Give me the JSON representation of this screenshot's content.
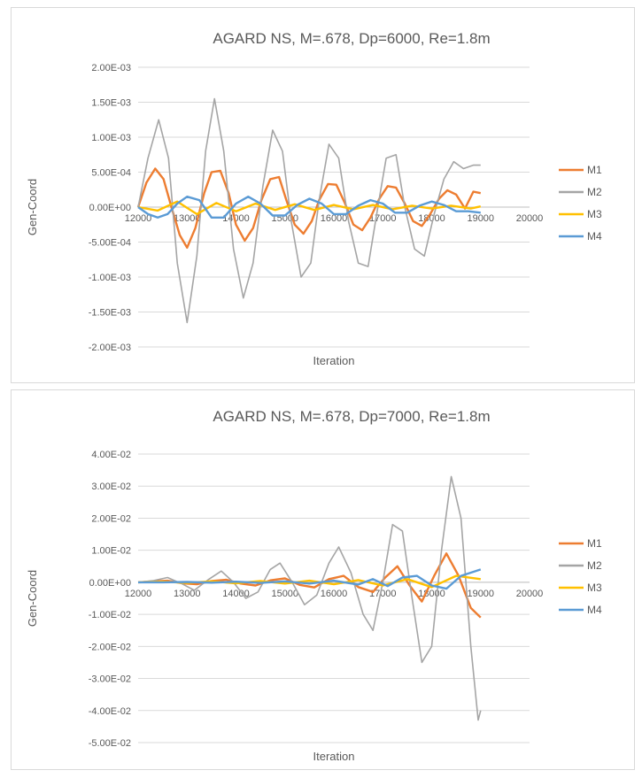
{
  "chart_data": [
    {
      "type": "line",
      "title": "AGARD NS, M=.678, Dp=6000, Re=1.8m",
      "xlabel": "Iteration",
      "ylabel": "Gen-Coord",
      "xlim": [
        12000,
        20000
      ],
      "ylim": [
        -0.002,
        0.002
      ],
      "x_ticks": [
        "12000",
        "13000",
        "14000",
        "15000",
        "16000",
        "17000",
        "18000",
        "19000",
        "20000"
      ],
      "y_ticks": [
        "2.00E-03",
        "1.50E-03",
        "1.00E-03",
        "5.00E-04",
        "0.00E+00",
        "-5.00E-04",
        "-1.00E-03",
        "-1.50E-03",
        "-2.00E-03"
      ],
      "grid": true,
      "legend": "right",
      "series": [
        {
          "name": "M1",
          "color": "#ED7D31",
          "x": [
            12000,
            12170,
            12350,
            12520,
            12680,
            12850,
            13000,
            13170,
            13350,
            13500,
            13680,
            13850,
            14000,
            14180,
            14350,
            14520,
            14700,
            14880,
            15030,
            15200,
            15380,
            15550,
            15700,
            15880,
            16050,
            16230,
            16400,
            16580,
            16750,
            16930,
            17100,
            17270,
            17450,
            17620,
            17800,
            17970,
            18150,
            18320,
            18500,
            18680,
            18850,
            19000
          ],
          "y": [
            0,
            0.00035,
            0.00055,
            0.0004,
            0,
            -0.0004,
            -0.00058,
            -0.0003,
            0.0002,
            0.0005,
            0.00052,
            0.0002,
            -0.00025,
            -0.00048,
            -0.0003,
            0.0001,
            0.0004,
            0.00043,
            0.0001,
            -0.00025,
            -0.00038,
            -0.0002,
            0.0001,
            0.00033,
            0.00032,
            5e-05,
            -0.00025,
            -0.00033,
            -0.00015,
            0.00012,
            0.0003,
            0.00028,
            5e-05,
            -0.0002,
            -0.00027,
            -0.0001,
            0.00012,
            0.00024,
            0.00018,
            -2e-05,
            0.00022,
            0.0002
          ]
        },
        {
          "name": "M2",
          "color": "#A5A5A5",
          "x": [
            12000,
            12200,
            12420,
            12620,
            12800,
            13000,
            13200,
            13380,
            13560,
            13750,
            13950,
            14150,
            14350,
            14550,
            14750,
            14950,
            15130,
            15330,
            15530,
            15700,
            15900,
            16100,
            16300,
            16500,
            16700,
            16900,
            17070,
            17270,
            17450,
            17650,
            17850,
            18050,
            18250,
            18450,
            18650,
            18850,
            19000
          ],
          "y": [
            0,
            0.0007,
            0.00125,
            0.0007,
            -0.0008,
            -0.00165,
            -0.0007,
            0.0008,
            0.00155,
            0.0008,
            -0.0006,
            -0.0013,
            -0.0008,
            0.0003,
            0.0011,
            0.0008,
            -0.0002,
            -0.001,
            -0.0008,
            0.0001,
            0.0009,
            0.0007,
            -0.0002,
            -0.0008,
            -0.00085,
            0,
            0.0007,
            0.00075,
            0,
            -0.0006,
            -0.0007,
            -0.0001,
            0.0004,
            0.00065,
            0.00055,
            0.0006,
            0.0006
          ]
        },
        {
          "name": "M3",
          "color": "#FFC000",
          "x": [
            12000,
            12400,
            12800,
            13200,
            13600,
            14000,
            14400,
            14800,
            15200,
            15600,
            16000,
            16400,
            16800,
            17200,
            17600,
            18000,
            18400,
            18800,
            19000
          ],
          "y": [
            0,
            -5e-05,
            8e-05,
            -0.0001,
            6e-05,
            -6e-05,
            5e-05,
            -4e-05,
            4e-05,
            -4e-05,
            3e-05,
            -3e-05,
            3e-05,
            -3e-05,
            2e-05,
            -2e-05,
            2e-05,
            -2e-05,
            1e-05
          ]
        },
        {
          "name": "M4",
          "color": "#5B9BD5",
          "x": [
            12000,
            12200,
            12400,
            12600,
            12800,
            13000,
            13250,
            13500,
            13750,
            14000,
            14250,
            14500,
            14750,
            15000,
            15250,
            15500,
            15750,
            16000,
            16250,
            16500,
            16750,
            17000,
            17250,
            17500,
            17750,
            18000,
            18250,
            18500,
            18750,
            19000
          ],
          "y": [
            0,
            -0.0001,
            -0.00015,
            -0.0001,
            5e-05,
            0.00015,
            0.0001,
            -0.00015,
            -0.00015,
            5e-05,
            0.00015,
            5e-05,
            -0.00012,
            -0.00012,
            3e-05,
            0.00012,
            5e-05,
            -0.0001,
            -0.0001,
            2e-05,
            0.0001,
            5e-05,
            -8e-05,
            -8e-05,
            2e-05,
            8e-05,
            3e-05,
            -6e-05,
            -6e-05,
            -8e-05
          ]
        }
      ]
    },
    {
      "type": "line",
      "title": "AGARD NS, M=.678, Dp=7000, Re=1.8m",
      "xlabel": "Iteration",
      "ylabel": "Gen-Coord",
      "xlim": [
        12000,
        20000
      ],
      "ylim": [
        -0.05,
        0.04
      ],
      "x_ticks": [
        "12000",
        "13000",
        "14000",
        "15000",
        "16000",
        "17000",
        "18000",
        "19000",
        "20000"
      ],
      "y_ticks": [
        "4.00E-02",
        "3.00E-02",
        "2.00E-02",
        "1.00E-02",
        "0.00E+00",
        "-1.00E-02",
        "-2.00E-02",
        "-3.00E-02",
        "-4.00E-02",
        "-5.00E-02"
      ],
      "grid": true,
      "legend": "right",
      "series": [
        {
          "name": "M1",
          "color": "#ED7D31",
          "x": [
            12000,
            12300,
            12600,
            12900,
            13200,
            13500,
            13800,
            14100,
            14400,
            14700,
            15000,
            15300,
            15600,
            15900,
            16200,
            16500,
            16800,
            17050,
            17300,
            17550,
            17800,
            18050,
            18300,
            18550,
            18800,
            19000
          ],
          "y": [
            0,
            0.0003,
            0.0005,
            -0.0003,
            -0.0006,
            0.0004,
            0.0008,
            -0.0004,
            -0.001,
            0.0006,
            0.0012,
            -0.0008,
            -0.0016,
            0.001,
            0.002,
            -0.0015,
            -0.003,
            0.0015,
            0.005,
            -0.001,
            -0.006,
            0.002,
            0.009,
            0.002,
            -0.008,
            -0.011
          ]
        },
        {
          "name": "M2",
          "color": "#A5A5A5",
          "x": [
            12000,
            12300,
            12600,
            12900,
            13150,
            13450,
            13700,
            13950,
            14200,
            14450,
            14700,
            14900,
            15150,
            15400,
            15650,
            15900,
            16100,
            16350,
            16600,
            16800,
            17000,
            17200,
            17400,
            17600,
            17800,
            18000,
            18200,
            18400,
            18600,
            18800,
            18950,
            19000
          ],
          "y": [
            0,
            0.0005,
            0.0015,
            -0.0005,
            -0.0025,
            0.001,
            0.0035,
            0,
            -0.005,
            -0.003,
            0.004,
            0.006,
            0,
            -0.007,
            -0.004,
            0.006,
            0.011,
            0.003,
            -0.01,
            -0.015,
            0,
            0.018,
            0.016,
            -0.005,
            -0.025,
            -0.02,
            0.01,
            0.033,
            0.02,
            -0.02,
            -0.043,
            -0.04
          ]
        },
        {
          "name": "M3",
          "color": "#FFC000",
          "x": [
            12000,
            12500,
            13000,
            13500,
            14000,
            14500,
            15000,
            15500,
            16000,
            16500,
            17000,
            17500,
            18000,
            18500,
            19000
          ],
          "y": [
            0,
            0.0002,
            -0.0002,
            0.0003,
            -0.0003,
            0.0004,
            -0.0004,
            0.0005,
            -0.0006,
            0.0007,
            -0.001,
            0.001,
            -0.0015,
            0.002,
            0.001
          ]
        },
        {
          "name": "M4",
          "color": "#5B9BD5",
          "x": [
            12000,
            12500,
            13000,
            13500,
            14000,
            14500,
            15000,
            15500,
            16000,
            16500,
            16800,
            17100,
            17400,
            17700,
            18000,
            18300,
            18600,
            18800,
            19000
          ],
          "y": [
            0,
            0,
            0.0001,
            -0.0001,
            0.0002,
            -0.0002,
            0.0003,
            -0.0004,
            0.0005,
            -0.0007,
            0.001,
            -0.0012,
            0.0015,
            0.002,
            -0.001,
            -0.002,
            0.002,
            0.003,
            0.004
          ]
        }
      ]
    }
  ]
}
